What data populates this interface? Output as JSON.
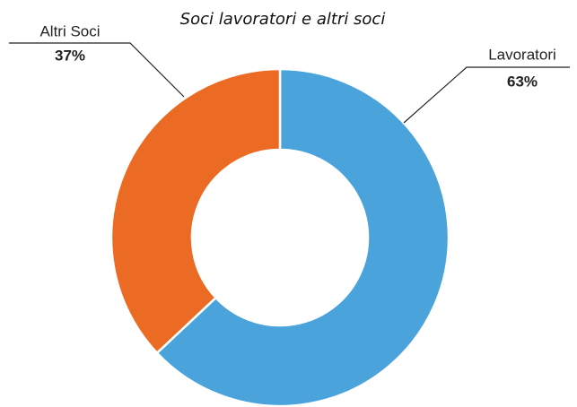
{
  "chart_data": {
    "type": "pie",
    "title": "Soci lavoratori e altri soci",
    "categories": [
      "Lavoratori",
      "Altri Soci"
    ],
    "values": [
      63,
      37
    ],
    "value_labels": [
      "63%",
      "37%"
    ],
    "colors": [
      "#4ba3db",
      "#ec6b24"
    ],
    "donut": true
  }
}
